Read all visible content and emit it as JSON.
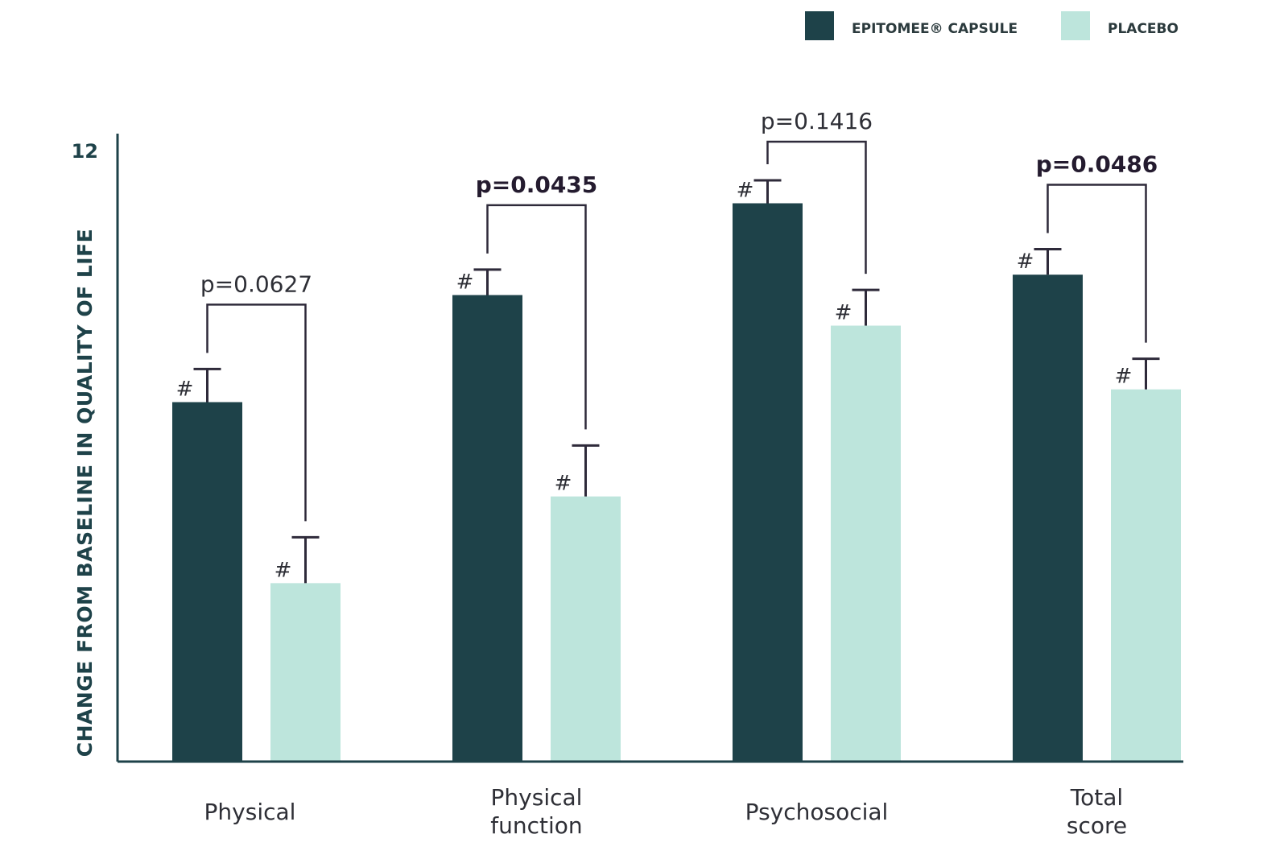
{
  "chart_data": {
    "type": "bar",
    "title": "",
    "xlabel": "",
    "ylabel": "CHANGE FROM BASELINE IN QUALITY OF LIFE",
    "ylim": [
      0,
      12
    ],
    "y_ticks": [
      "12"
    ],
    "categories": [
      "Physical",
      "Physical function",
      "Psychosocial",
      "Total score"
    ],
    "category_lines": [
      [
        "Physical"
      ],
      [
        "Physical",
        "function"
      ],
      [
        "Psychosocial"
      ],
      [
        "Total",
        "score"
      ]
    ],
    "series": [
      {
        "name": "EPITOMEE® CAPSULE",
        "color": "#1e4249",
        "values": [
          7.05,
          9.15,
          10.95,
          9.55
        ],
        "errors": [
          0.65,
          0.5,
          0.45,
          0.5
        ]
      },
      {
        "name": "PLACEBO",
        "color": "#bde5dc",
        "values": [
          3.5,
          5.2,
          8.55,
          7.3
        ],
        "errors": [
          0.9,
          1.0,
          0.7,
          0.6
        ]
      }
    ],
    "significance_marker": "#",
    "comparisons": [
      {
        "label": "p=0.0627",
        "bold": false
      },
      {
        "label": "p=0.0435",
        "bold": true
      },
      {
        "label": "p=0.1416",
        "bold": false
      },
      {
        "label": "p=0.0486",
        "bold": true
      }
    ],
    "legend_position": "top-right",
    "colors": {
      "axis": "#1e4249",
      "bracket": "#2e2a3a",
      "text": "#2e2f36"
    }
  }
}
